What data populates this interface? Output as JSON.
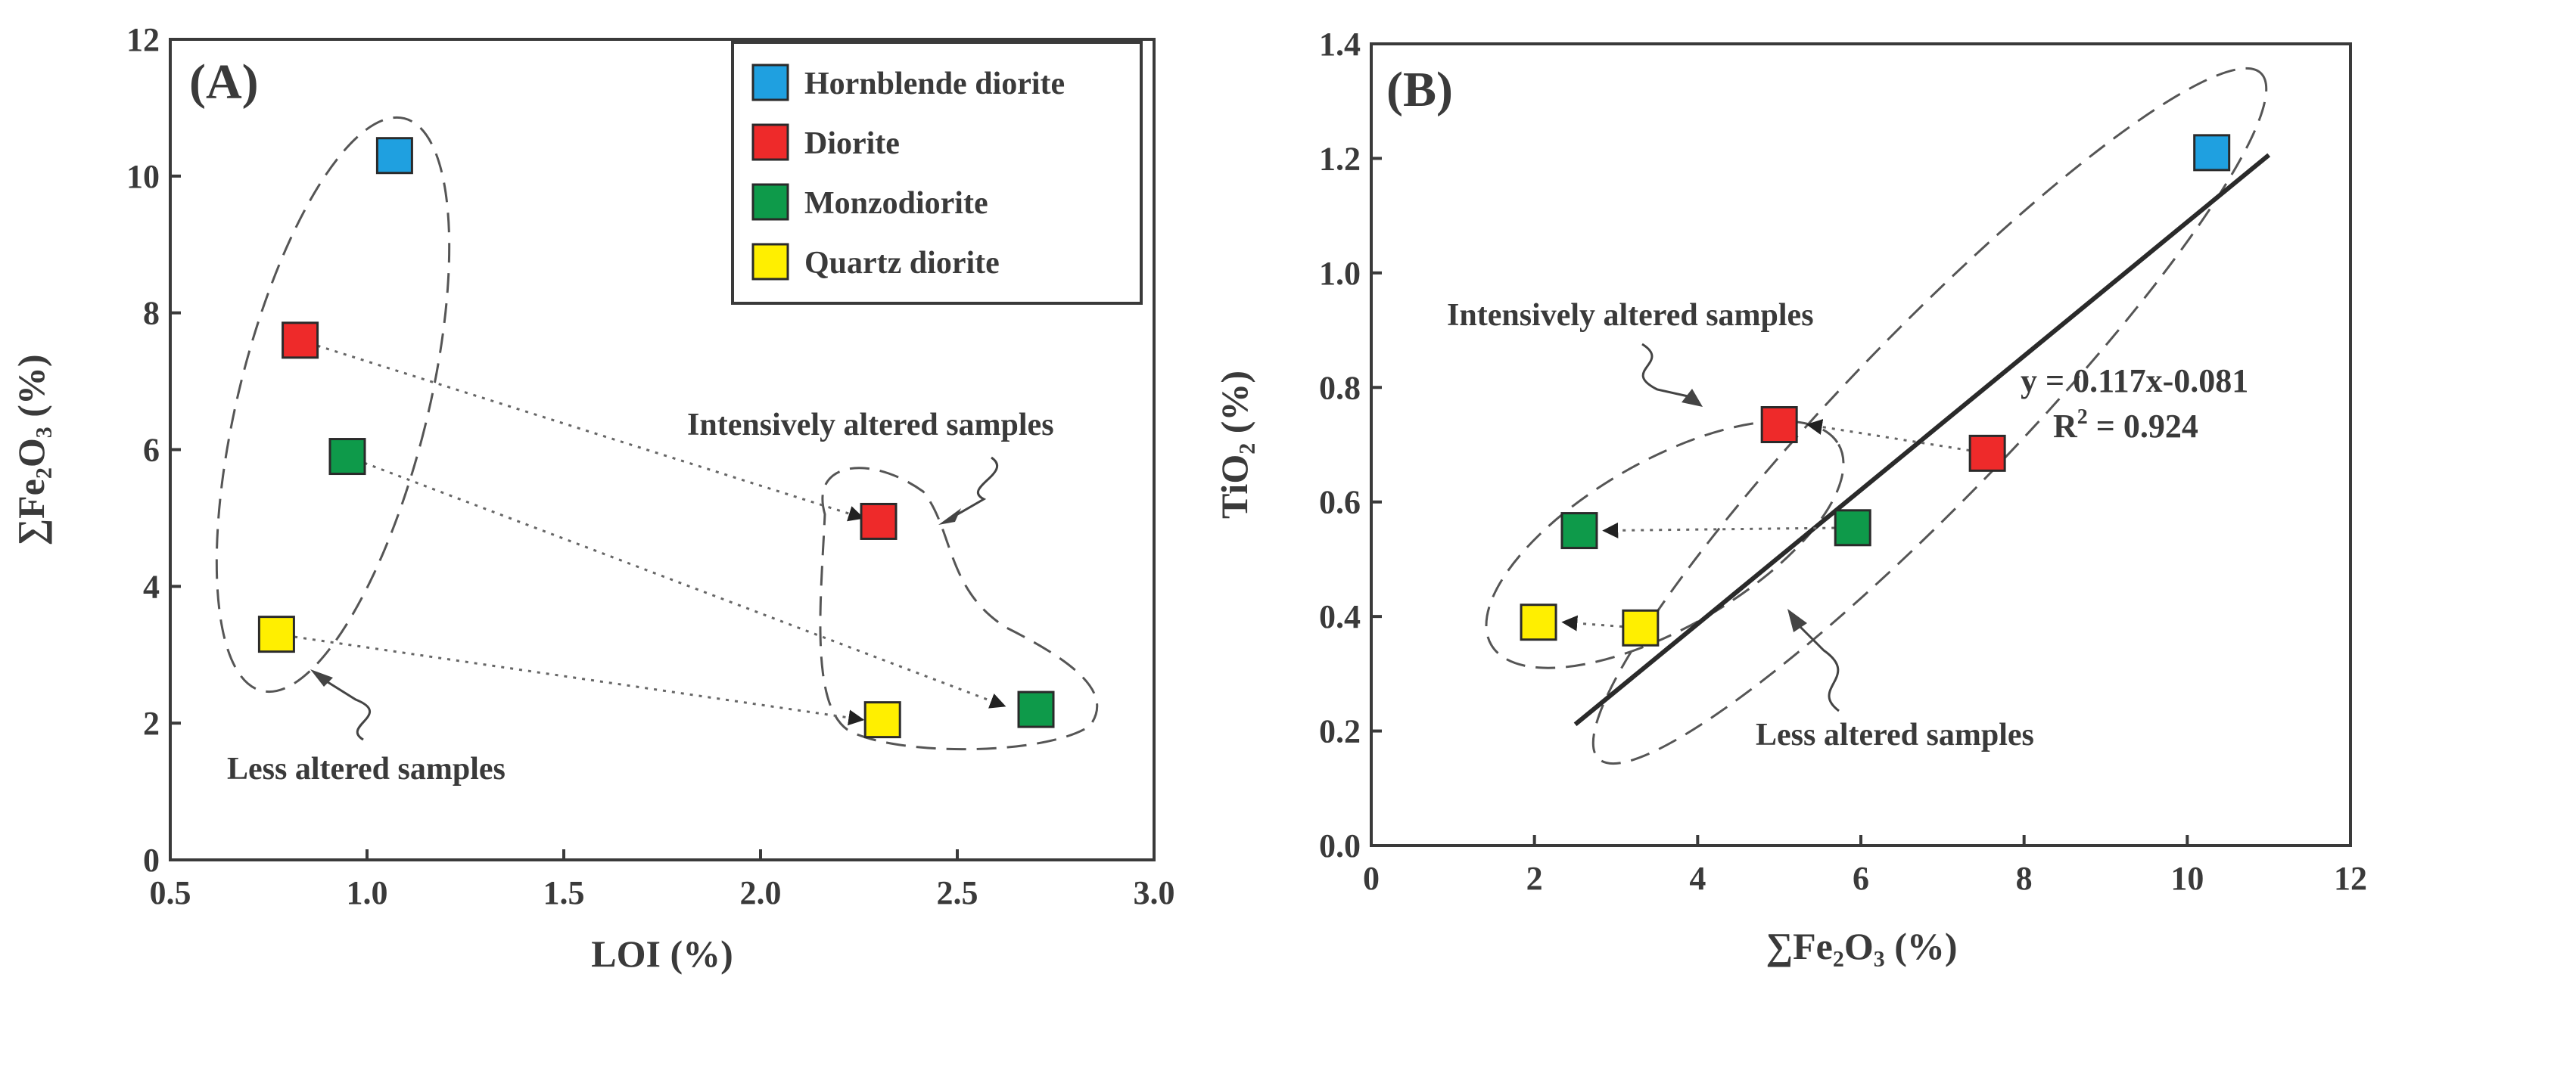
{
  "colors": {
    "hornblende": "#1fa0e0",
    "diorite": "#ee2a2a",
    "monzodiorite": "#0e9a4a",
    "quartz": "#ffef00",
    "axis": "#3a3a3a"
  },
  "legend": [
    {
      "label": "Hornblende diorite",
      "color_key": "hornblende"
    },
    {
      "label": "Diorite",
      "color_key": "diorite"
    },
    {
      "label": "Monzodiorite",
      "color_key": "monzodiorite"
    },
    {
      "label": "Quartz diorite",
      "color_key": "quartz"
    }
  ],
  "chart_data": [
    {
      "type": "scatter",
      "panel": "(A)",
      "xlabel": "LOI (%)",
      "ylabel": "∑Fe₂O₃ (%)",
      "xlim": [
        0.5,
        3.0
      ],
      "ylim": [
        0,
        12
      ],
      "xticks": [
        "0.5",
        "1.0",
        "1.5",
        "2.0",
        "2.5",
        "3.0"
      ],
      "yticks": [
        "0",
        "2",
        "4",
        "6",
        "8",
        "10",
        "12"
      ],
      "series": [
        {
          "name": "Hornblende diorite",
          "color_key": "hornblende",
          "points": [
            {
              "x": 1.07,
              "y": 10.3
            }
          ]
        },
        {
          "name": "Diorite",
          "color_key": "diorite",
          "points": [
            {
              "x": 0.83,
              "y": 7.6
            },
            {
              "x": 2.3,
              "y": 4.95
            }
          ]
        },
        {
          "name": "Monzodiorite",
          "color_key": "monzodiorite",
          "points": [
            {
              "x": 0.95,
              "y": 5.9
            },
            {
              "x": 2.7,
              "y": 2.2
            }
          ]
        },
        {
          "name": "Quartz diorite",
          "color_key": "quartz",
          "points": [
            {
              "x": 0.77,
              "y": 3.3
            },
            {
              "x": 2.31,
              "y": 2.05
            }
          ]
        }
      ],
      "alteration_arrows": [
        {
          "from": [
            0.83,
            7.6
          ],
          "to": [
            2.26,
            5.0
          ]
        },
        {
          "from": [
            0.95,
            5.9
          ],
          "to": [
            2.62,
            2.25
          ]
        },
        {
          "from": [
            0.77,
            3.3
          ],
          "to": [
            2.26,
            2.05
          ]
        }
      ],
      "annotations": [
        "Intensively altered samples",
        "Less altered samples"
      ]
    },
    {
      "type": "scatter",
      "panel": "(B)",
      "xlabel": "∑Fe₂O₃ (%)",
      "ylabel": "TiO₂ (%)",
      "xlim": [
        0,
        12
      ],
      "ylim": [
        0.0,
        1.4
      ],
      "xticks": [
        "0",
        "2",
        "4",
        "6",
        "8",
        "10",
        "12"
      ],
      "yticks": [
        "0.0",
        "0.2",
        "0.4",
        "0.6",
        "0.8",
        "1.0",
        "1.2",
        "1.4"
      ],
      "series": [
        {
          "name": "Hornblende diorite",
          "color_key": "hornblende",
          "points": [
            {
              "x": 10.3,
              "y": 1.21
            }
          ]
        },
        {
          "name": "Diorite",
          "color_key": "diorite",
          "points": [
            {
              "x": 5.0,
              "y": 0.735
            },
            {
              "x": 7.55,
              "y": 0.685
            }
          ]
        },
        {
          "name": "Monzodiorite",
          "color_key": "monzodiorite",
          "points": [
            {
              "x": 2.55,
              "y": 0.55
            },
            {
              "x": 5.9,
              "y": 0.555
            }
          ]
        },
        {
          "name": "Quartz diorite",
          "color_key": "quartz",
          "points": [
            {
              "x": 2.05,
              "y": 0.39
            },
            {
              "x": 3.3,
              "y": 0.38
            }
          ]
        }
      ],
      "alteration_arrows": [
        {
          "from": [
            7.55,
            0.685
          ],
          "to": [
            5.35,
            0.735
          ]
        },
        {
          "from": [
            5.9,
            0.555
          ],
          "to": [
            2.85,
            0.55
          ]
        },
        {
          "from": [
            3.3,
            0.38
          ],
          "to": [
            2.35,
            0.39
          ]
        }
      ],
      "trendline": {
        "x1": 2.5,
        "x2": 11.0,
        "slope": 0.117,
        "intercept": -0.081
      },
      "equation": "y = 0.117x-0.081",
      "r2_prefix": "R",
      "r2_exp": "2",
      "r2_value": " = 0.924",
      "annotations": [
        "Intensively altered samples",
        "Less altered samples"
      ]
    }
  ]
}
